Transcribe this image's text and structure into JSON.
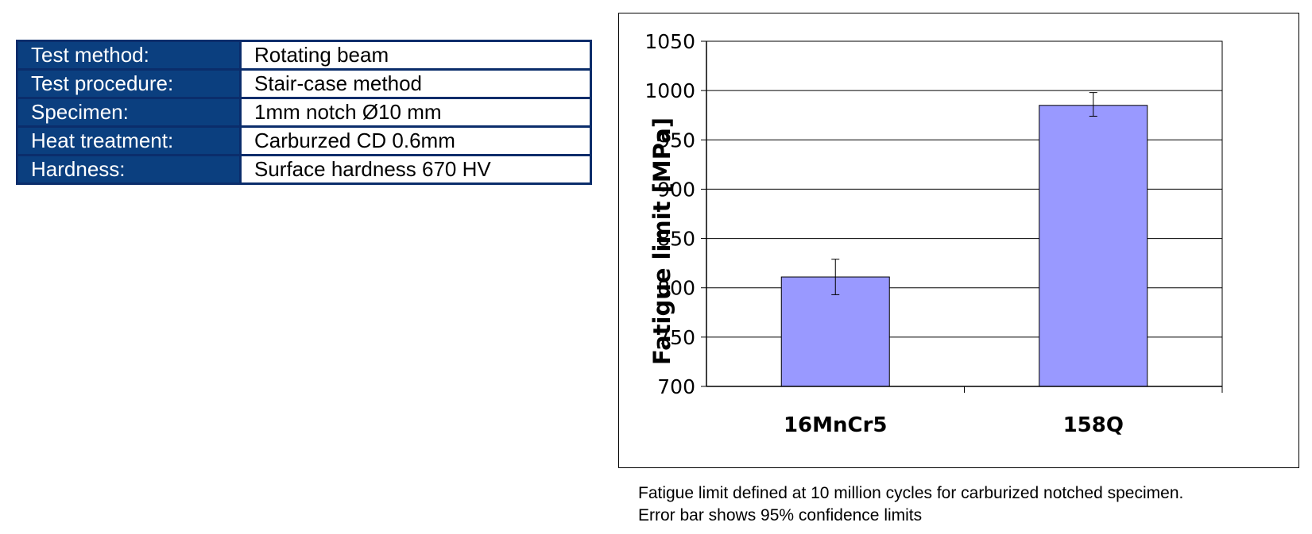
{
  "table": {
    "rows": [
      {
        "key": "Test method:",
        "value": "Rotating beam"
      },
      {
        "key": "Test procedure:",
        "value": "Stair-case method"
      },
      {
        "key": "Specimen:",
        "value": "1mm notch Ø10 mm"
      },
      {
        "key": "Heat treatment:",
        "value": "Carburzed CD 0.6mm"
      },
      {
        "key": "Hardness:",
        "value": "Surface hardness 670 HV"
      }
    ]
  },
  "colors": {
    "table_key_bg": "#0b3f7f",
    "table_border": "#0b2d6b",
    "bar_fill": "#9999ff"
  },
  "chart_data": {
    "type": "bar",
    "categories": [
      "16MnCr5",
      "158Q"
    ],
    "values": [
      811,
      985
    ],
    "error_low": [
      793,
      974
    ],
    "error_high": [
      829,
      998
    ],
    "title": "",
    "xlabel": "",
    "ylabel": "Fatigue limit [MPa]",
    "ylim": [
      700,
      1050
    ],
    "yticks": [
      700,
      750,
      800,
      850,
      900,
      950,
      1000,
      1050
    ],
    "grid": true,
    "legend": "none"
  },
  "caption": {
    "line1": "Fatigue limit defined at 10 million cycles for carburized notched specimen.",
    "line2": "Error bar shows 95% confidence limits"
  }
}
